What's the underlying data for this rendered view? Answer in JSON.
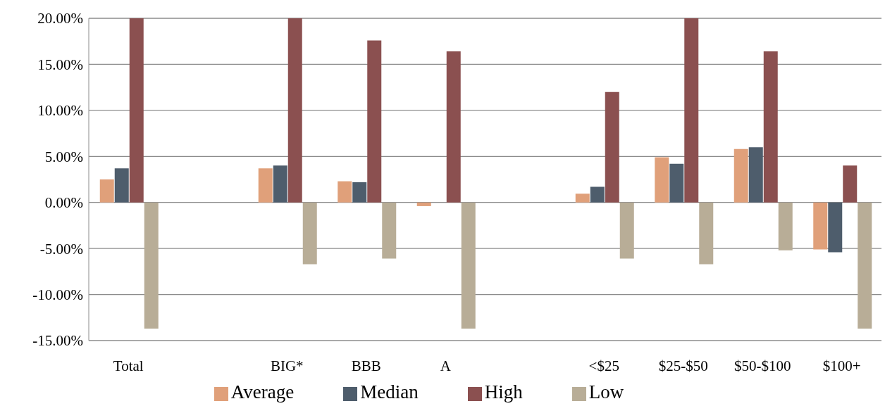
{
  "chart_data": {
    "type": "bar",
    "categories": [
      "Total",
      null,
      "BIG*",
      "BBB",
      "A",
      null,
      "<$25",
      "$25-$50",
      "$50-$100",
      "$100+"
    ],
    "series": [
      {
        "name": "Average",
        "color": "#e0a07a",
        "values": [
          2.5,
          null,
          3.7,
          2.3,
          -0.4,
          null,
          0.95,
          4.9,
          5.8,
          -5.1
        ]
      },
      {
        "name": "Median",
        "color": "#4e5d6c",
        "values": [
          3.7,
          null,
          4.0,
          2.2,
          null,
          null,
          1.7,
          4.2,
          6.0,
          -5.4
        ]
      },
      {
        "name": "High",
        "color": "#8b5050",
        "values": [
          20,
          null,
          20,
          17.6,
          16.4,
          null,
          12.0,
          20,
          16.4,
          4.0
        ]
      },
      {
        "name": "Low",
        "color": "#b8ad97",
        "values": [
          -13.7,
          null,
          -6.7,
          -6.1,
          -13.7,
          null,
          -6.1,
          -6.7,
          -5.2,
          -13.7
        ]
      }
    ],
    "ylim": [
      -15,
      20
    ],
    "yticks": [
      {
        "value": -15,
        "label": "-15.00%"
      },
      {
        "value": -10,
        "label": "-10.00%"
      },
      {
        "value": -5,
        "label": "-5.00%"
      },
      {
        "value": 0,
        "label": "0.00%"
      },
      {
        "value": 5,
        "label": "5.00%"
      },
      {
        "value": 10,
        "label": "10.00%"
      },
      {
        "value": 15,
        "label": "15.00%"
      },
      {
        "value": 20,
        "label": "20.00%"
      }
    ],
    "grid": "y",
    "legend": "bottom"
  }
}
